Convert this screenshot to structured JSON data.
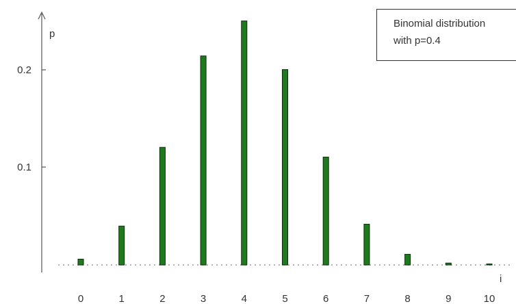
{
  "chart_data": {
    "type": "bar",
    "categories": [
      "0",
      "1",
      "2",
      "3",
      "4",
      "5",
      "6",
      "7",
      "8",
      "9",
      "10"
    ],
    "values": [
      0.006,
      0.04,
      0.121,
      0.215,
      0.251,
      0.201,
      0.111,
      0.042,
      0.011,
      0.002,
      0.0001
    ],
    "ylabel": "p",
    "xlabel": "i",
    "yticks": [
      0.1,
      0.2
    ],
    "ytick_labels": [
      "0.1",
      "0.2"
    ],
    "ylim": [
      0,
      0.27
    ],
    "legend": {
      "placement": "top-right",
      "lines": [
        "Binomial distribution",
        "with p=0.4"
      ]
    },
    "colors": {
      "bar_fill": "#1f7a1f",
      "bar_stroke": "#0b2e0b",
      "axis": "#555555",
      "baseline": "#999999"
    }
  }
}
